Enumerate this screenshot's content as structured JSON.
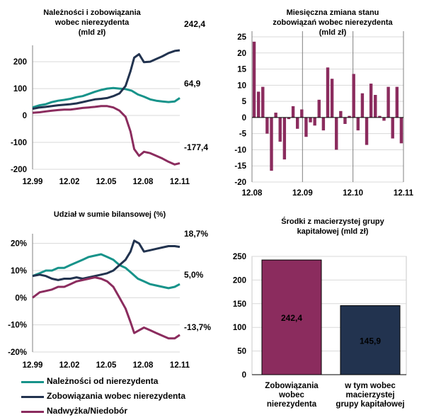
{
  "colors": {
    "receivables": "#17938A",
    "liabilities": "#22334F",
    "balance": "#8B2C5E",
    "bar_liab": "#8B2C5E",
    "bar_group": "#22334F"
  },
  "legend": {
    "items": [
      {
        "label": "Należności od nierezydenta",
        "color": "#17938A"
      },
      {
        "label": "Zobowiązania wobec nierezydenta",
        "color": "#22334F"
      },
      {
        "label": "Nadwyżka/Niedobór",
        "color": "#8B2C5E"
      }
    ]
  },
  "chart_data": [
    {
      "type": "line",
      "title": "Należności i zobowiązania wobec nierezydenta (mld zł)",
      "title_lines": [
        "Należności  i zobowiązania",
        "wobec nierezydenta",
        "(mld  zł)"
      ],
      "x_ticks": [
        "12.99",
        "12.02",
        "12.05",
        "12.08",
        "12.11"
      ],
      "x_range": [
        1999.917,
        2011.917
      ],
      "y_ticks": [
        "200",
        "100",
        "0",
        "-100",
        "-200"
      ],
      "y_tick_values": [
        200,
        100,
        0,
        -100,
        -200
      ],
      "ylim": [
        -200,
        245
      ],
      "grid": "horizontal",
      "end_labels": [
        "242,4",
        "64,9",
        "-177,4"
      ],
      "series": [
        {
          "key": "receivables",
          "points": [
            [
              1999.917,
              30
            ],
            [
              2000.5,
              38
            ],
            [
              2001.0,
              42
            ],
            [
              2001.5,
              50
            ],
            [
              2002.0,
              55
            ],
            [
              2002.5,
              58
            ],
            [
              2003.0,
              62
            ],
            [
              2003.5,
              68
            ],
            [
              2004.0,
              72
            ],
            [
              2004.5,
              80
            ],
            [
              2005.0,
              88
            ],
            [
              2005.5,
              95
            ],
            [
              2006.0,
              100
            ],
            [
              2006.5,
              102
            ],
            [
              2007.0,
              100
            ],
            [
              2007.5,
              98
            ],
            [
              2008.0,
              92
            ],
            [
              2008.5,
              78
            ],
            [
              2009.0,
              70
            ],
            [
              2009.5,
              60
            ],
            [
              2010.0,
              55
            ],
            [
              2010.5,
              52
            ],
            [
              2011.0,
              50
            ],
            [
              2011.5,
              52
            ],
            [
              2011.917,
              64.9
            ]
          ]
        },
        {
          "key": "liabilities",
          "points": [
            [
              1999.917,
              25
            ],
            [
              2000.5,
              30
            ],
            [
              2001.0,
              32
            ],
            [
              2001.5,
              35
            ],
            [
              2002.0,
              38
            ],
            [
              2002.5,
              40
            ],
            [
              2003.0,
              42
            ],
            [
              2003.5,
              45
            ],
            [
              2004.0,
              50
            ],
            [
              2004.5,
              55
            ],
            [
              2005.0,
              60
            ],
            [
              2005.5,
              62
            ],
            [
              2006.0,
              65
            ],
            [
              2006.5,
              72
            ],
            [
              2007.0,
              82
            ],
            [
              2007.5,
              110
            ],
            [
              2007.9,
              165
            ],
            [
              2008.2,
              215
            ],
            [
              2008.6,
              228
            ],
            [
              2009.0,
              198
            ],
            [
              2009.5,
              200
            ],
            [
              2010.0,
              210
            ],
            [
              2010.5,
              220
            ],
            [
              2011.0,
              232
            ],
            [
              2011.5,
              240
            ],
            [
              2011.917,
              242.4
            ]
          ]
        },
        {
          "key": "balance",
          "points": [
            [
              1999.917,
              10
            ],
            [
              2000.5,
              12
            ],
            [
              2001.0,
              15
            ],
            [
              2001.5,
              18
            ],
            [
              2002.0,
              20
            ],
            [
              2002.5,
              22
            ],
            [
              2003.0,
              22
            ],
            [
              2003.5,
              25
            ],
            [
              2004.0,
              28
            ],
            [
              2004.5,
              30
            ],
            [
              2005.0,
              32
            ],
            [
              2005.5,
              35
            ],
            [
              2006.0,
              35
            ],
            [
              2006.5,
              30
            ],
            [
              2007.0,
              18
            ],
            [
              2007.5,
              -5
            ],
            [
              2007.9,
              -60
            ],
            [
              2008.2,
              -125
            ],
            [
              2008.6,
              -150
            ],
            [
              2009.0,
              -135
            ],
            [
              2009.5,
              -140
            ],
            [
              2010.0,
              -150
            ],
            [
              2010.5,
              -160
            ],
            [
              2011.0,
              -172
            ],
            [
              2011.5,
              -182
            ],
            [
              2011.917,
              -177.4
            ]
          ]
        }
      ]
    },
    {
      "type": "bar",
      "title": "Miesięczna zmiana stanu zobowiązań wobec nierezydenta (mld zł)",
      "title_lines": [
        "Miesięczna  zmiana  stanu",
        "zobowiązań  wobec nierezydenta",
        "(mld  zł)"
      ],
      "x_ticks": [
        "12.08",
        "12.09",
        "12.10",
        "12.11"
      ],
      "y_ticks": [
        "25",
        "20",
        "15",
        "10",
        "5",
        "0",
        "-5",
        "-10",
        "-15",
        "-20"
      ],
      "y_tick_values": [
        25,
        20,
        15,
        10,
        5,
        0,
        -5,
        -10,
        -15,
        -20
      ],
      "ylim": [
        -20,
        25
      ],
      "grid": "horizontal",
      "values": [
        23.5,
        8,
        9.5,
        -5,
        -16.5,
        1.5,
        -7.5,
        -13,
        -0.5,
        3.5,
        -3.5,
        2.5,
        -6,
        -1.5,
        -2.5,
        5.5,
        -4,
        15.5,
        12,
        -10,
        2,
        -2,
        0.5,
        13.5,
        -4,
        7.5,
        -8.5,
        10.5,
        7,
        0.5,
        -1,
        9.5,
        -6.5,
        9.5,
        -8
      ]
    },
    {
      "type": "line",
      "title": "Udział w sumie bilansowej (%)",
      "title_lines": [
        "Udział  w sumie  bilansowej  (%)"
      ],
      "x_ticks": [
        "12.99",
        "12.02",
        "12.05",
        "12.08",
        "12.11"
      ],
      "x_range": [
        1999.917,
        2011.917
      ],
      "y_ticks": [
        "20%",
        "10%",
        "0%",
        "-10%",
        "-20%"
      ],
      "y_tick_values": [
        20,
        10,
        0,
        -10,
        -20
      ],
      "ylim": [
        -20,
        22
      ],
      "grid": "horizontal",
      "end_labels": [
        "18,7%",
        "5,0%",
        "-13,7%"
      ],
      "series": [
        {
          "key": "receivables",
          "points": [
            [
              1999.917,
              8
            ],
            [
              2000.5,
              9
            ],
            [
              2001.0,
              10
            ],
            [
              2001.5,
              10
            ],
            [
              2002.0,
              11
            ],
            [
              2002.5,
              11
            ],
            [
              2003.0,
              12
            ],
            [
              2003.5,
              13
            ],
            [
              2004.0,
              14
            ],
            [
              2004.5,
              15
            ],
            [
              2005.0,
              15.5
            ],
            [
              2005.5,
              16
            ],
            [
              2006.0,
              15
            ],
            [
              2006.5,
              14
            ],
            [
              2007.0,
              12
            ],
            [
              2007.5,
              11
            ],
            [
              2008.0,
              9
            ],
            [
              2008.5,
              7
            ],
            [
              2009.0,
              6
            ],
            [
              2009.5,
              5
            ],
            [
              2010.0,
              4.5
            ],
            [
              2010.5,
              4
            ],
            [
              2011.0,
              3.5
            ],
            [
              2011.5,
              4
            ],
            [
              2011.917,
              5.0
            ]
          ]
        },
        {
          "key": "liabilities",
          "points": [
            [
              1999.917,
              8
            ],
            [
              2000.5,
              8.5
            ],
            [
              2001.0,
              8
            ],
            [
              2001.5,
              7
            ],
            [
              2002.0,
              6.5
            ],
            [
              2002.5,
              7
            ],
            [
              2003.0,
              7
            ],
            [
              2003.5,
              7.5
            ],
            [
              2004.0,
              7
            ],
            [
              2004.5,
              7.5
            ],
            [
              2005.0,
              8
            ],
            [
              2005.5,
              8.5
            ],
            [
              2006.0,
              9
            ],
            [
              2006.5,
              10
            ],
            [
              2007.0,
              12
            ],
            [
              2007.5,
              14
            ],
            [
              2007.9,
              17
            ],
            [
              2008.2,
              21
            ],
            [
              2008.6,
              20
            ],
            [
              2009.0,
              17
            ],
            [
              2009.5,
              17.5
            ],
            [
              2010.0,
              18
            ],
            [
              2010.5,
              18.5
            ],
            [
              2011.0,
              19
            ],
            [
              2011.5,
              19
            ],
            [
              2011.917,
              18.7
            ]
          ]
        },
        {
          "key": "balance",
          "points": [
            [
              1999.917,
              0
            ],
            [
              2000.5,
              2
            ],
            [
              2001.0,
              2.5
            ],
            [
              2001.5,
              3
            ],
            [
              2002.0,
              4
            ],
            [
              2002.5,
              4
            ],
            [
              2003.0,
              5
            ],
            [
              2003.5,
              6
            ],
            [
              2004.0,
              6.5
            ],
            [
              2004.5,
              7
            ],
            [
              2005.0,
              7.5
            ],
            [
              2005.5,
              7
            ],
            [
              2006.0,
              6
            ],
            [
              2006.5,
              4
            ],
            [
              2007.0,
              0
            ],
            [
              2007.5,
              -4
            ],
            [
              2007.9,
              -9
            ],
            [
              2008.2,
              -13
            ],
            [
              2008.6,
              -12
            ],
            [
              2009.0,
              -11
            ],
            [
              2009.5,
              -12
            ],
            [
              2010.0,
              -13
            ],
            [
              2010.5,
              -14
            ],
            [
              2011.0,
              -15
            ],
            [
              2011.5,
              -15
            ],
            [
              2011.917,
              -13.7
            ]
          ]
        }
      ]
    },
    {
      "type": "bar",
      "title": "Środki z macierzystej grupy kapitałowej (mld zł)",
      "title_lines": [
        "Środki  z macierzystej  grupy",
        "kapitałowej  (mld  zł)"
      ],
      "y_ticks": [
        "250",
        "200",
        "150",
        "100",
        "50",
        "0"
      ],
      "y_tick_values": [
        250,
        200,
        150,
        100,
        50,
        0
      ],
      "ylim": [
        0,
        250
      ],
      "grid": "horizontal",
      "categories": [
        "Zobowiązania wobec nierezydenta",
        "w tym wobec macierzystej grupy kapitałowej"
      ],
      "category_lines": [
        [
          "Zobowiązania",
          "wobec",
          "nierezydenta"
        ],
        [
          "w tym wobec",
          "macierzystej",
          "grupy kapitałowej"
        ]
      ],
      "values": [
        242.4,
        145.9
      ],
      "value_labels": [
        "242,4",
        "145,9"
      ]
    }
  ]
}
